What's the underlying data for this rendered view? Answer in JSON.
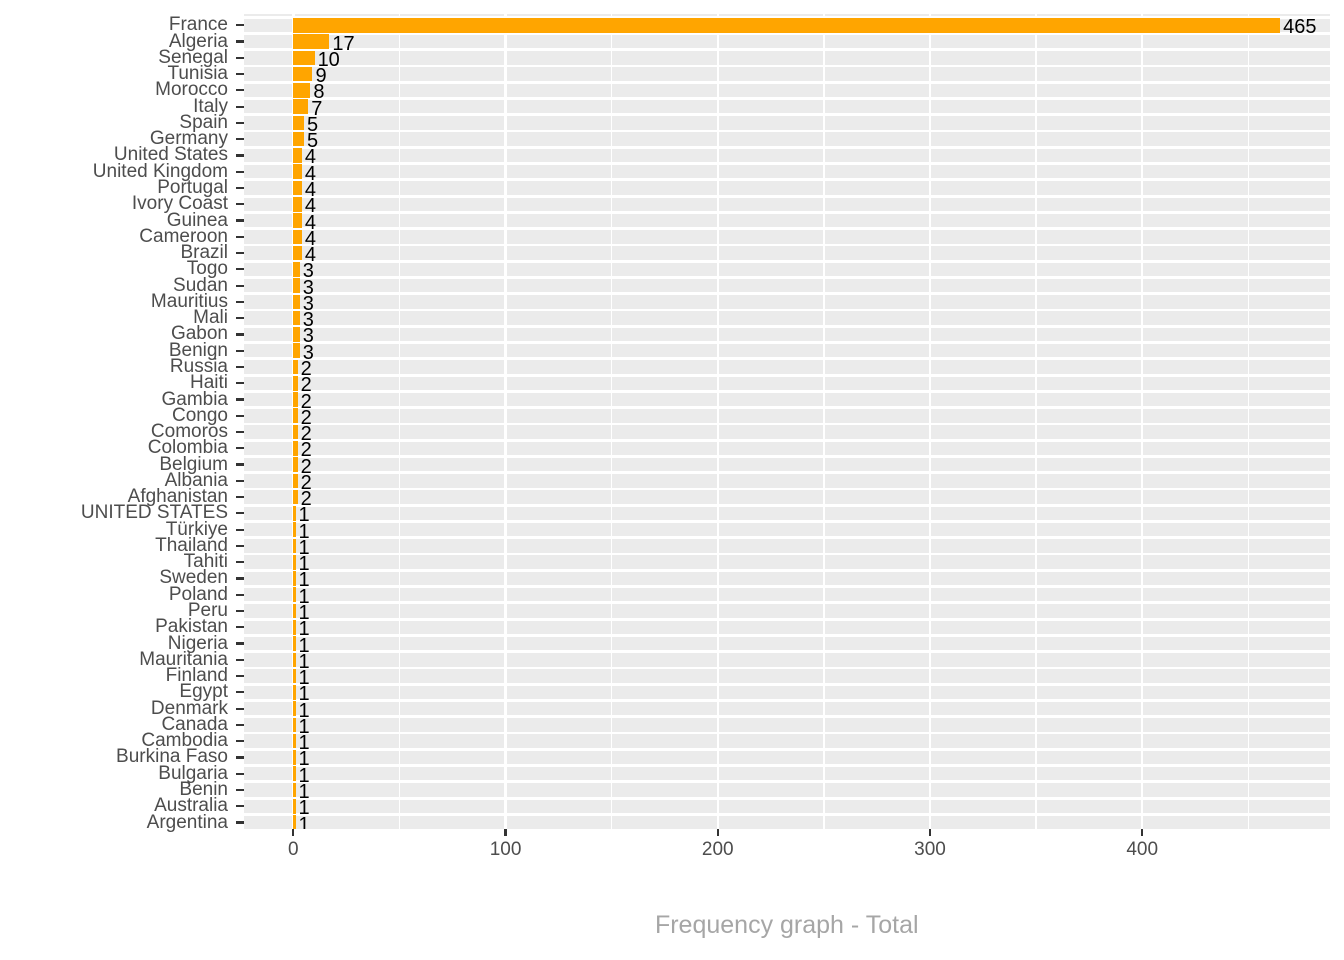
{
  "chart_data": {
    "type": "bar",
    "orientation": "horizontal",
    "title": "Frequency graph - Total",
    "categories": [
      "France",
      "Algeria",
      "Senegal",
      "Tunisia",
      "Morocco",
      "Italy",
      "Spain",
      "Germany",
      "United States",
      "United Kingdom",
      "Portugal",
      "Ivory Coast",
      "Guinea",
      "Cameroon",
      "Brazil",
      "Togo",
      "Sudan",
      "Mauritius",
      "Mali",
      "Gabon",
      "Benign",
      "Russia",
      "Haiti",
      "Gambia",
      "Congo",
      "Comoros",
      "Colombia",
      "Belgium",
      "Albania",
      "Afghanistan",
      "UNITED STATES",
      "Türkiye",
      "Thailand",
      "Tahiti",
      "Sweden",
      "Poland",
      "Peru",
      "Pakistan",
      "Nigeria",
      "Mauritania",
      "Finland",
      "Egypt",
      "Denmark",
      "Canada",
      "Cambodia",
      "Burkina Faso",
      "Bulgaria",
      "Benin",
      "Australia",
      "Argentina"
    ],
    "values": [
      465,
      17,
      10,
      9,
      8,
      7,
      5,
      5,
      4,
      4,
      4,
      4,
      4,
      4,
      4,
      3,
      3,
      3,
      3,
      3,
      3,
      2,
      2,
      2,
      2,
      2,
      2,
      2,
      2,
      2,
      1,
      1,
      1,
      1,
      1,
      1,
      1,
      1,
      1,
      1,
      1,
      1,
      1,
      1,
      1,
      1,
      1,
      1,
      1,
      1
    ],
    "bar_labels_shown": true,
    "x_ticks": [
      0,
      100,
      200,
      300,
      400
    ],
    "x_minor_ticks": [
      50,
      150,
      250,
      350,
      450
    ],
    "xlim": [
      -23.25,
      488.25
    ],
    "xlabel": "Frequency graph - Total",
    "ylabel": "",
    "grid": "on",
    "legend": "none",
    "colors": {
      "bar_fill": "#FFA500",
      "panel_background": "#EBEBEB",
      "gridline": "#FFFFFF",
      "axis_text": "#4D4D4D",
      "tick_mark": "#333333",
      "value_label": "#000000",
      "title_text": "#A6A6A6",
      "page_background": "#FFFFFF"
    }
  }
}
